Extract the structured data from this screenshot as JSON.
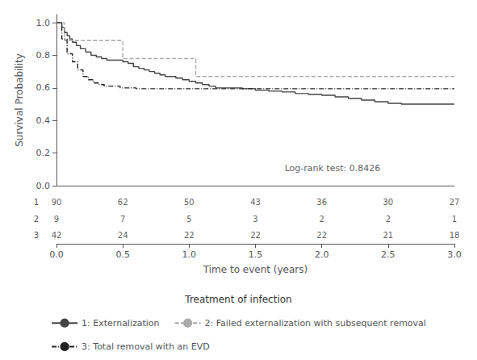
{
  "chart_data": {
    "type": "line",
    "step": true,
    "xlabel": "Time to event (years)",
    "ylabel": "Survival Probability",
    "xlim": [
      0.0,
      3.0
    ],
    "ylim": [
      0.0,
      1.05
    ],
    "xticks": [
      {
        "value": 0.0,
        "label": "0.0"
      },
      0.5,
      {
        "value": 1.0,
        "label": "1.0"
      },
      1.5,
      {
        "value": 2.0,
        "label": "2.0"
      },
      2.5,
      {
        "value": 3.0,
        "label": "3.0"
      }
    ],
    "yticks": [
      {
        "value": 0.0,
        "label": "0.0"
      },
      0.2,
      0.4,
      0.6,
      0.8,
      {
        "value": 1.0,
        "label": "1.0"
      }
    ],
    "grid": false,
    "legend": "bottom",
    "legend_title": "Treatment of infection",
    "annotations": [
      {
        "text": "Log-rank test: 0.8426",
        "x": 1.72,
        "y": 0.08
      }
    ],
    "series": [
      {
        "name": "1: Externalization",
        "color": "#444444",
        "line_style": "solid",
        "x": [
          0.0,
          0.04,
          0.06,
          0.08,
          0.1,
          0.12,
          0.15,
          0.18,
          0.22,
          0.26,
          0.3,
          0.34,
          0.38,
          0.42,
          0.46,
          0.5,
          0.54,
          0.58,
          0.62,
          0.66,
          0.7,
          0.74,
          0.78,
          0.82,
          0.86,
          0.9,
          0.95,
          1.0,
          1.05,
          1.1,
          1.15,
          1.2,
          1.3,
          1.4,
          1.5,
          1.6,
          1.7,
          1.8,
          1.9,
          2.0,
          2.1,
          2.2,
          2.3,
          2.4,
          2.5,
          2.6,
          2.7,
          2.8,
          3.0
        ],
        "values": [
          1.0,
          0.97,
          0.94,
          0.92,
          0.9,
          0.88,
          0.86,
          0.84,
          0.82,
          0.8,
          0.79,
          0.78,
          0.77,
          0.77,
          0.77,
          0.76,
          0.75,
          0.73,
          0.72,
          0.71,
          0.7,
          0.69,
          0.68,
          0.67,
          0.67,
          0.66,
          0.65,
          0.64,
          0.63,
          0.62,
          0.61,
          0.6,
          0.6,
          0.595,
          0.585,
          0.58,
          0.575,
          0.565,
          0.56,
          0.555,
          0.545,
          0.535,
          0.525,
          0.515,
          0.505,
          0.5,
          0.5,
          0.5,
          0.5
        ]
      },
      {
        "name": "2: Failed externalization with subsequent removal",
        "color": "#aaaaaa",
        "line_style": "dashed",
        "x": [
          0.0,
          0.06,
          0.3,
          0.45,
          0.5,
          0.8,
          1.0,
          1.05,
          1.5,
          2.0,
          2.5,
          3.0
        ],
        "values": [
          1.0,
          0.89,
          0.89,
          0.89,
          0.78,
          0.78,
          0.78,
          0.67,
          0.67,
          0.67,
          0.67,
          0.67
        ]
      },
      {
        "name": "3: Total removal with an EVD",
        "color": "#222222",
        "line_style": "dashdot",
        "x": [
          0.0,
          0.04,
          0.08,
          0.12,
          0.16,
          0.2,
          0.24,
          0.28,
          0.32,
          0.36,
          0.4,
          0.44,
          0.48,
          0.52,
          0.6,
          0.7,
          0.8,
          1.0,
          1.5,
          2.0,
          2.5,
          3.0
        ],
        "values": [
          1.0,
          0.9,
          0.81,
          0.76,
          0.71,
          0.67,
          0.65,
          0.63,
          0.62,
          0.61,
          0.61,
          0.61,
          0.6,
          0.6,
          0.595,
          0.595,
          0.595,
          0.595,
          0.595,
          0.595,
          0.595,
          0.595
        ]
      }
    ],
    "at_risk": {
      "times": [
        0.0,
        0.5,
        1.0,
        1.5,
        2.0,
        2.5,
        3.0
      ],
      "rows": [
        {
          "label": "1",
          "values": [
            90,
            62,
            50,
            43,
            36,
            30,
            27
          ]
        },
        {
          "label": "2",
          "values": [
            9,
            7,
            5,
            3,
            2,
            2,
            1
          ]
        },
        {
          "label": "3",
          "values": [
            42,
            24,
            22,
            22,
            22,
            21,
            18
          ]
        }
      ]
    }
  }
}
